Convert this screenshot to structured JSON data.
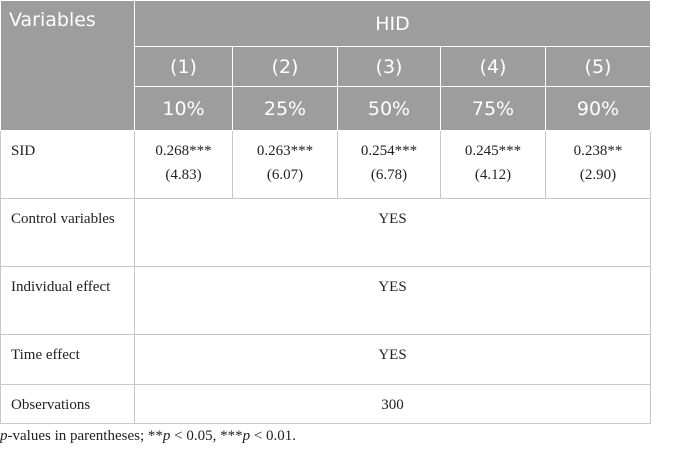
{
  "table": {
    "header": {
      "stub": "Variables",
      "group": "HID",
      "models": [
        "(1)",
        "(2)",
        "(3)",
        "(4)",
        "(5)"
      ],
      "quantiles": [
        "10%",
        "25%",
        "50%",
        "75%",
        "90%"
      ]
    },
    "rows": [
      {
        "label": "SID",
        "values": [
          {
            "coef": "0.268***",
            "t": "(4.83)"
          },
          {
            "coef": "0.263***",
            "t": "(6.07)"
          },
          {
            "coef": "0.254***",
            "t": "(6.78)"
          },
          {
            "coef": "0.245***",
            "t": "(4.12)"
          },
          {
            "coef": "0.238**",
            "t": "(2.90)"
          }
        ]
      },
      {
        "label": "Control variables",
        "span": "YES"
      },
      {
        "label": "Individual effect",
        "span": "YES"
      },
      {
        "label": "Time effect",
        "span": "YES"
      },
      {
        "label": "Observations",
        "span": "300"
      }
    ]
  },
  "footnote": [
    "p",
    "-values in parentheses; **",
    "p",
    " < 0.05, ***",
    "p",
    " < 0.01."
  ]
}
